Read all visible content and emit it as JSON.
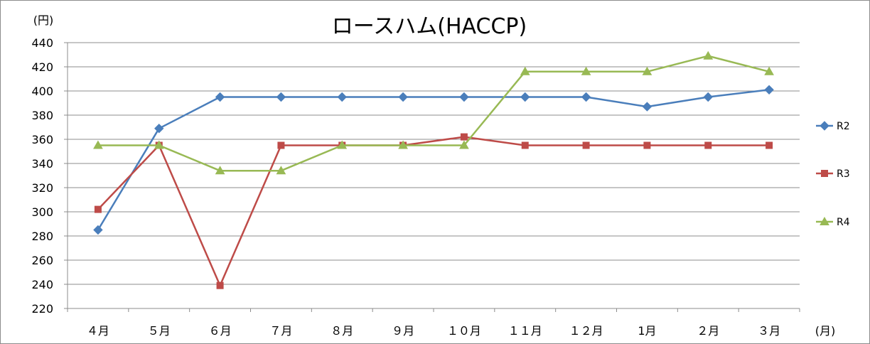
{
  "chart_data": {
    "type": "line",
    "title": "ロースハム(HACCP)",
    "ylabel": "(円)",
    "xlabel": "(月)",
    "ylim": [
      220,
      440
    ],
    "yticks": [
      220,
      240,
      260,
      280,
      300,
      320,
      340,
      360,
      380,
      400,
      420,
      440
    ],
    "categories": [
      "４月",
      "５月",
      "６月",
      "７月",
      "８月",
      "９月",
      "１０月",
      "１１月",
      "１２月",
      "1月",
      "２月",
      "３月"
    ],
    "grid": true,
    "legend_position": "right",
    "series": [
      {
        "name": "R2",
        "color": "#4a7ebb",
        "marker": "diamond",
        "values": [
          285,
          369,
          395,
          395,
          395,
          395,
          395,
          395,
          395,
          387,
          395,
          401
        ]
      },
      {
        "name": "R3",
        "color": "#be4b48",
        "marker": "square",
        "values": [
          302,
          355,
          239,
          355,
          355,
          355,
          362,
          355,
          355,
          355,
          355,
          355
        ]
      },
      {
        "name": "R4",
        "color": "#98b954",
        "marker": "triangle",
        "values": [
          355,
          355,
          334,
          334,
          355,
          355,
          355,
          416,
          416,
          416,
          429,
          416
        ]
      }
    ]
  }
}
